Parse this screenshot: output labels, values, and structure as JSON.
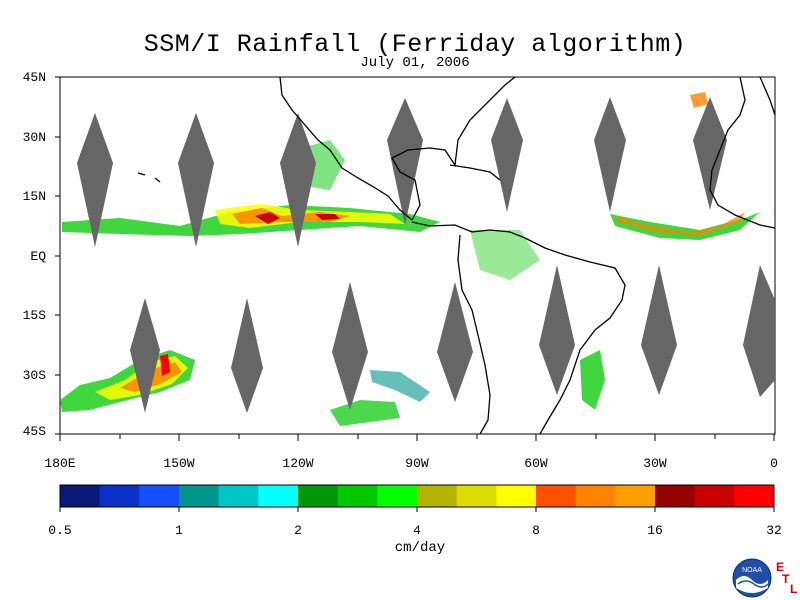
{
  "title": "SSM/I Rainfall (Ferriday algorithm)",
  "subtitle": "July 01, 2006",
  "y_labels": [
    "45N",
    "30N",
    "15N",
    "EQ",
    "15S",
    "30S",
    "45S"
  ],
  "x_labels": [
    "180E",
    "150W",
    "120W",
    "90W",
    "60W",
    "30W",
    "0"
  ],
  "colorbar": {
    "labels": [
      "0.5",
      "1",
      "2",
      "4",
      "8",
      "16",
      "32"
    ],
    "unit": "cm/day",
    "colors": [
      "#0a1a78",
      "#0a32c8",
      "#1450ff",
      "#00968c",
      "#00c8c8",
      "#00ffff",
      "#00960a",
      "#00c800",
      "#00ff00",
      "#b4b400",
      "#dcdc00",
      "#ffff00",
      "#ff5000",
      "#ff8200",
      "#ffa000",
      "#960000",
      "#c80000",
      "#ff0000"
    ]
  },
  "logo": {
    "text": "NOAA",
    "badge": [
      "E",
      "T",
      "L"
    ]
  },
  "colors": {
    "swath_gap": "#666666",
    "coast": "#000000"
  }
}
